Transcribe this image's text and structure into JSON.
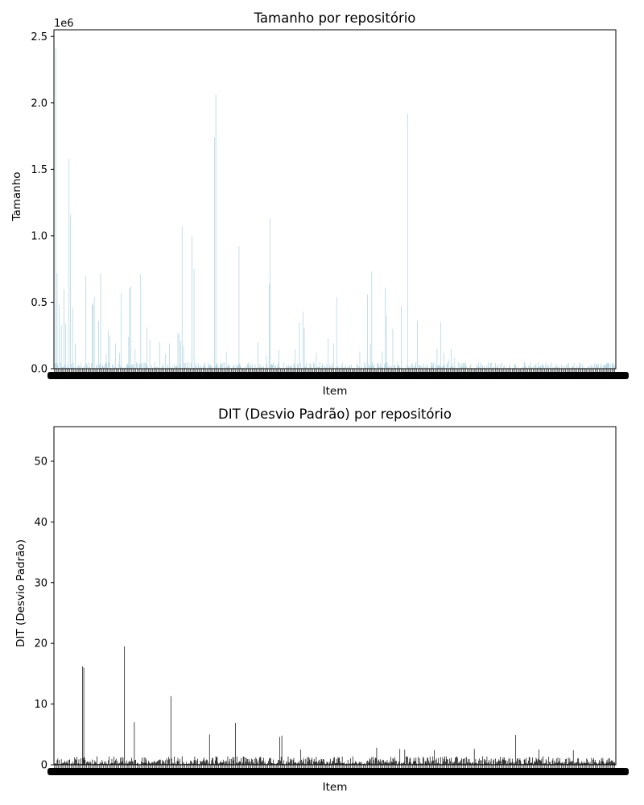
{
  "chart_data": [
    {
      "type": "bar",
      "title": "Tamanho por repositório",
      "xlabel": "Item",
      "ylabel": "Tamanho",
      "offset_text": "1e6",
      "ylim": [
        0,
        2.55
      ],
      "yticks": [
        0.0,
        0.5,
        1.0,
        1.5,
        2.0,
        2.5
      ],
      "ytick_labels": [
        "0.0",
        "0.5",
        "1.0",
        "1.5",
        "2.0",
        "2.5"
      ],
      "n_items": 800,
      "bar_color": "#aad3e0",
      "grid": false,
      "peaks": [
        [
          2,
          2.41
        ],
        [
          4,
          0.72
        ],
        [
          7,
          0.48
        ],
        [
          10,
          0.33
        ],
        [
          14,
          0.6
        ],
        [
          16,
          0.34
        ],
        [
          21,
          1.58
        ],
        [
          23,
          1.16
        ],
        [
          26,
          0.46
        ],
        [
          30,
          0.19
        ],
        [
          45,
          0.7
        ],
        [
          54,
          0.49
        ],
        [
          55,
          0.48
        ],
        [
          57,
          0.54
        ],
        [
          63,
          0.36
        ],
        [
          66,
          0.72
        ],
        [
          74,
          0.11
        ],
        [
          77,
          0.29
        ],
        [
          79,
          0.25
        ],
        [
          87,
          0.19
        ],
        [
          93,
          0.12
        ],
        [
          95,
          0.57
        ],
        [
          106,
          0.24
        ],
        [
          107,
          0.61
        ],
        [
          109,
          0.62
        ],
        [
          115,
          0.15
        ],
        [
          123,
          0.71
        ],
        [
          132,
          0.31
        ],
        [
          136,
          0.22
        ],
        [
          150,
          0.2
        ],
        [
          158,
          0.11
        ],
        [
          164,
          0.19
        ],
        [
          176,
          0.27
        ],
        [
          178,
          0.26
        ],
        [
          180,
          0.21
        ],
        [
          182,
          1.07
        ],
        [
          184,
          0.17
        ],
        [
          196,
          1.0
        ],
        [
          199,
          0.75
        ],
        [
          228,
          1.74
        ],
        [
          230,
          2.06
        ],
        [
          245,
          0.13
        ],
        [
          263,
          0.92
        ],
        [
          290,
          0.2
        ],
        [
          302,
          0.1
        ],
        [
          306,
          0.64
        ],
        [
          307,
          1.13
        ],
        [
          320,
          0.14
        ],
        [
          343,
          0.15
        ],
        [
          349,
          0.35
        ],
        [
          354,
          0.43
        ],
        [
          356,
          0.31
        ],
        [
          373,
          0.12
        ],
        [
          390,
          0.23
        ],
        [
          398,
          0.19
        ],
        [
          402,
          0.54
        ],
        [
          435,
          0.13
        ],
        [
          446,
          0.56
        ],
        [
          450,
          0.19
        ],
        [
          452,
          0.73
        ],
        [
          467,
          0.13
        ],
        [
          471,
          0.61
        ],
        [
          473,
          0.4
        ],
        [
          482,
          0.3
        ],
        [
          494,
          0.47
        ],
        [
          503,
          1.92
        ],
        [
          517,
          0.36
        ],
        [
          545,
          0.15
        ],
        [
          550,
          0.35
        ],
        [
          555,
          0.12
        ],
        [
          562,
          0.07
        ],
        [
          565,
          0.15
        ],
        [
          570,
          0.08
        ],
        [
          575,
          0.05
        ],
        [
          580,
          0.04
        ],
        [
          585,
          0.05
        ]
      ]
    },
    {
      "type": "bar",
      "title": "DIT (Desvio Padrão) por repositório",
      "xlabel": "Item",
      "ylabel": "DIT (Desvio Padrão)",
      "ylim": [
        0,
        55.7
      ],
      "yticks": [
        0,
        10,
        20,
        30,
        40,
        50
      ],
      "ytick_labels": [
        "0",
        "10",
        "20",
        "30",
        "40",
        "50"
      ],
      "n_items": 800,
      "bar_color": "#000000",
      "grid": false,
      "peaks": [
        [
          40,
          16.2
        ],
        [
          42,
          16.0
        ],
        [
          100,
          19.5
        ],
        [
          114,
          7.0
        ],
        [
          166,
          11.3
        ],
        [
          221,
          5.0
        ],
        [
          258,
          6.9
        ],
        [
          321,
          4.6
        ],
        [
          324,
          4.8
        ],
        [
          351,
          2.5
        ],
        [
          459,
          2.8
        ],
        [
          492,
          2.6
        ],
        [
          499,
          2.5
        ],
        [
          541,
          2.4
        ],
        [
          598,
          2.6
        ],
        [
          657,
          4.9
        ],
        [
          690,
          2.5
        ],
        [
          739,
          2.4
        ]
      ]
    }
  ]
}
